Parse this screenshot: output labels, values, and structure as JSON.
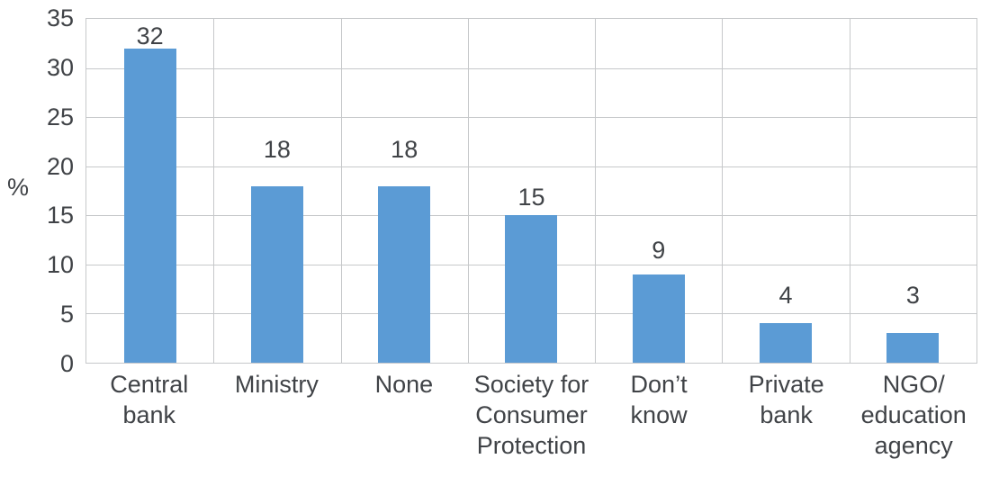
{
  "chart_data": {
    "type": "bar",
    "title": "",
    "xlabel": "",
    "ylabel": "%",
    "ylim": [
      0,
      35
    ],
    "y_tick_step": 5,
    "y_ticks": [
      "0",
      "5",
      "10",
      "15",
      "20",
      "25",
      "30",
      "35"
    ],
    "categories": [
      "Central bank",
      "Ministry",
      "None",
      "Society for Consumer Protection",
      "Don’t know",
      "Private bank",
      "NGO/education agency"
    ],
    "display_labels": [
      "Central\nbank",
      "Ministry",
      "None",
      "Society for\nConsumer\nProtection",
      "Don’t\nknow",
      "Private\nbank",
      "NGO/\neducation\nagency"
    ],
    "values": [
      32,
      18,
      18,
      15,
      9,
      4,
      3
    ],
    "value_labels": [
      "32",
      "18",
      "18",
      "15",
      "9",
      "4",
      "3"
    ],
    "grid": {
      "horizontal": true,
      "vertical": true
    },
    "legend": "none",
    "colors": {
      "bar": "#5B9BD5",
      "gridline": "#C6C8CA",
      "text": "#404347",
      "background": "#FFFFFF"
    }
  }
}
